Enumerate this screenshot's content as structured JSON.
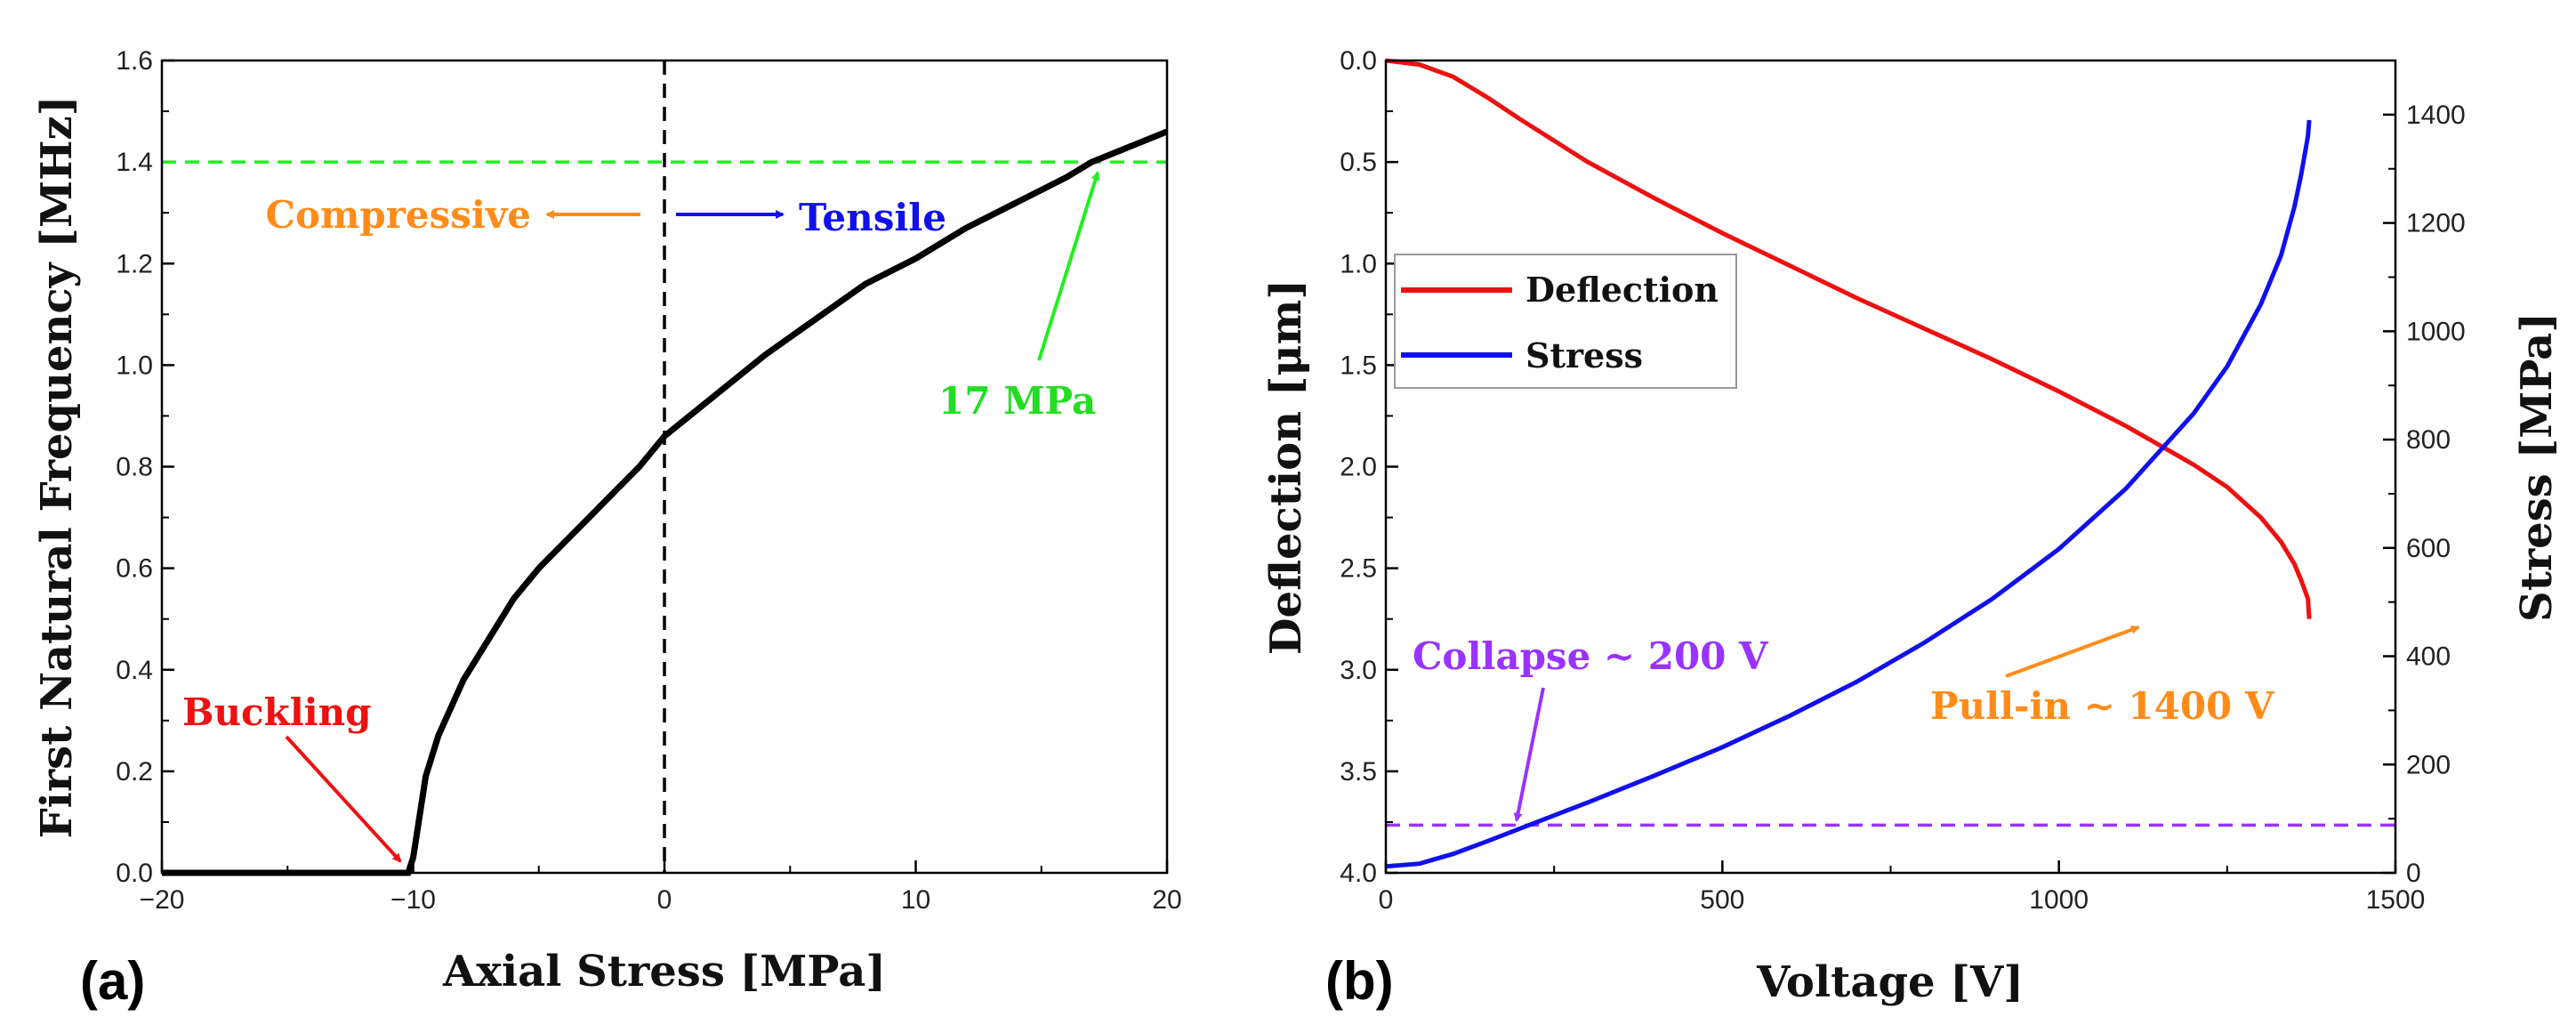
{
  "chart_data": [
    {
      "type": "line",
      "panel_label": "(a)",
      "xlabel": "Axial Stress [MPa]",
      "ylabel": "First Natural Frequency [MHz]",
      "xlim": [
        -20,
        20
      ],
      "ylim": [
        0,
        1.6
      ],
      "xticks": [
        -20,
        -10,
        0,
        10,
        20
      ],
      "xtick_labels": [
        "−20",
        "−10",
        "0",
        "10",
        "20"
      ],
      "yticks": [
        0.0,
        0.2,
        0.4,
        0.6,
        0.8,
        1.0,
        1.2,
        1.4,
        1.6
      ],
      "ytick_labels": [
        "0.0",
        "0.2",
        "0.4",
        "0.6",
        "0.8",
        "1.0",
        "1.2",
        "1.4",
        "1.6"
      ],
      "series": [
        {
          "name": "First Natural Frequency",
          "color": "#000000",
          "x": [
            -20,
            -10.2,
            -10,
            -9.5,
            -9,
            -8,
            -7,
            -6,
            -5,
            -4,
            -3,
            -2,
            -1,
            0,
            2,
            4,
            6,
            8,
            10,
            12,
            14,
            16,
            17,
            18,
            20
          ],
          "y": [
            0,
            0,
            0.03,
            0.19,
            0.27,
            0.38,
            0.46,
            0.54,
            0.6,
            0.65,
            0.7,
            0.75,
            0.8,
            0.86,
            0.94,
            1.02,
            1.09,
            1.16,
            1.21,
            1.27,
            1.32,
            1.37,
            1.4,
            1.42,
            1.46
          ]
        }
      ],
      "reference_lines": [
        {
          "orientation": "vertical",
          "value": 0,
          "color": "#000000",
          "style": "dashed"
        },
        {
          "orientation": "horizontal",
          "value": 1.4,
          "color": "#22ee22",
          "style": "dashed"
        }
      ],
      "annotations": [
        {
          "text": "Compressive",
          "color": "#ff8c1a"
        },
        {
          "text": "Tensile",
          "color": "#1010ee"
        },
        {
          "text": "17 MPa",
          "color": "#22dd22"
        },
        {
          "text": "Buckling",
          "color": "#ee1111"
        }
      ]
    },
    {
      "type": "line",
      "panel_label": "(b)",
      "xlabel": "Voltage [V]",
      "ylabel": "Deflection [μm]",
      "y2label": "Stress [MPa]",
      "xlim": [
        0,
        1500
      ],
      "ylim": [
        0,
        4.0
      ],
      "y_inverted": true,
      "y2lim": [
        0,
        1500
      ],
      "xticks": [
        0,
        500,
        1000,
        1500
      ],
      "xtick_labels": [
        "0",
        "500",
        "1000",
        "1500"
      ],
      "yticks": [
        0.0,
        0.5,
        1.0,
        1.5,
        2.0,
        2.5,
        3.0,
        3.5,
        4.0
      ],
      "ytick_labels": [
        "0.0",
        "0.5",
        "1.0",
        "1.5",
        "2.0",
        "2.5",
        "3.0",
        "3.5",
        "4.0"
      ],
      "y2ticks": [
        0,
        200,
        400,
        600,
        800,
        1000,
        1200,
        1400
      ],
      "y2tick_labels": [
        "0",
        "200",
        "400",
        "600",
        "800",
        "1000",
        "1200",
        "1400"
      ],
      "legend": {
        "position": "upper-left",
        "entries": [
          "Deflection",
          "Stress"
        ]
      },
      "series": [
        {
          "name": "Deflection",
          "axis": "left",
          "color": "#ee1111",
          "x": [
            0,
            50,
            100,
            150,
            200,
            300,
            400,
            500,
            600,
            700,
            800,
            900,
            1000,
            1100,
            1200,
            1250,
            1300,
            1330,
            1350,
            1360,
            1370,
            1372
          ],
          "y": [
            0,
            0.02,
            0.08,
            0.18,
            0.29,
            0.5,
            0.68,
            0.85,
            1.01,
            1.17,
            1.32,
            1.47,
            1.63,
            1.8,
            1.99,
            2.1,
            2.25,
            2.37,
            2.48,
            2.56,
            2.65,
            2.75
          ]
        },
        {
          "name": "Stress",
          "axis": "right",
          "color": "#1010ee",
          "x": [
            0,
            50,
            100,
            150,
            200,
            300,
            400,
            500,
            600,
            700,
            800,
            900,
            1000,
            1100,
            1200,
            1250,
            1300,
            1330,
            1350,
            1360,
            1370,
            1372
          ],
          "y": [
            12,
            17,
            35,
            58,
            82,
            130,
            180,
            232,
            290,
            353,
            425,
            505,
            598,
            710,
            848,
            935,
            1050,
            1140,
            1230,
            1290,
            1360,
            1390
          ]
        }
      ],
      "reference_lines": [
        {
          "orientation": "horizontal",
          "axis": "right",
          "value": 88,
          "color": "#9933ff",
          "style": "dashed"
        }
      ],
      "annotations": [
        {
          "text": "Collapse ~ 200 V",
          "color": "#9933ff"
        },
        {
          "text": "Pull-in ~ 1400 V",
          "color": "#ff8c1a"
        }
      ]
    }
  ]
}
